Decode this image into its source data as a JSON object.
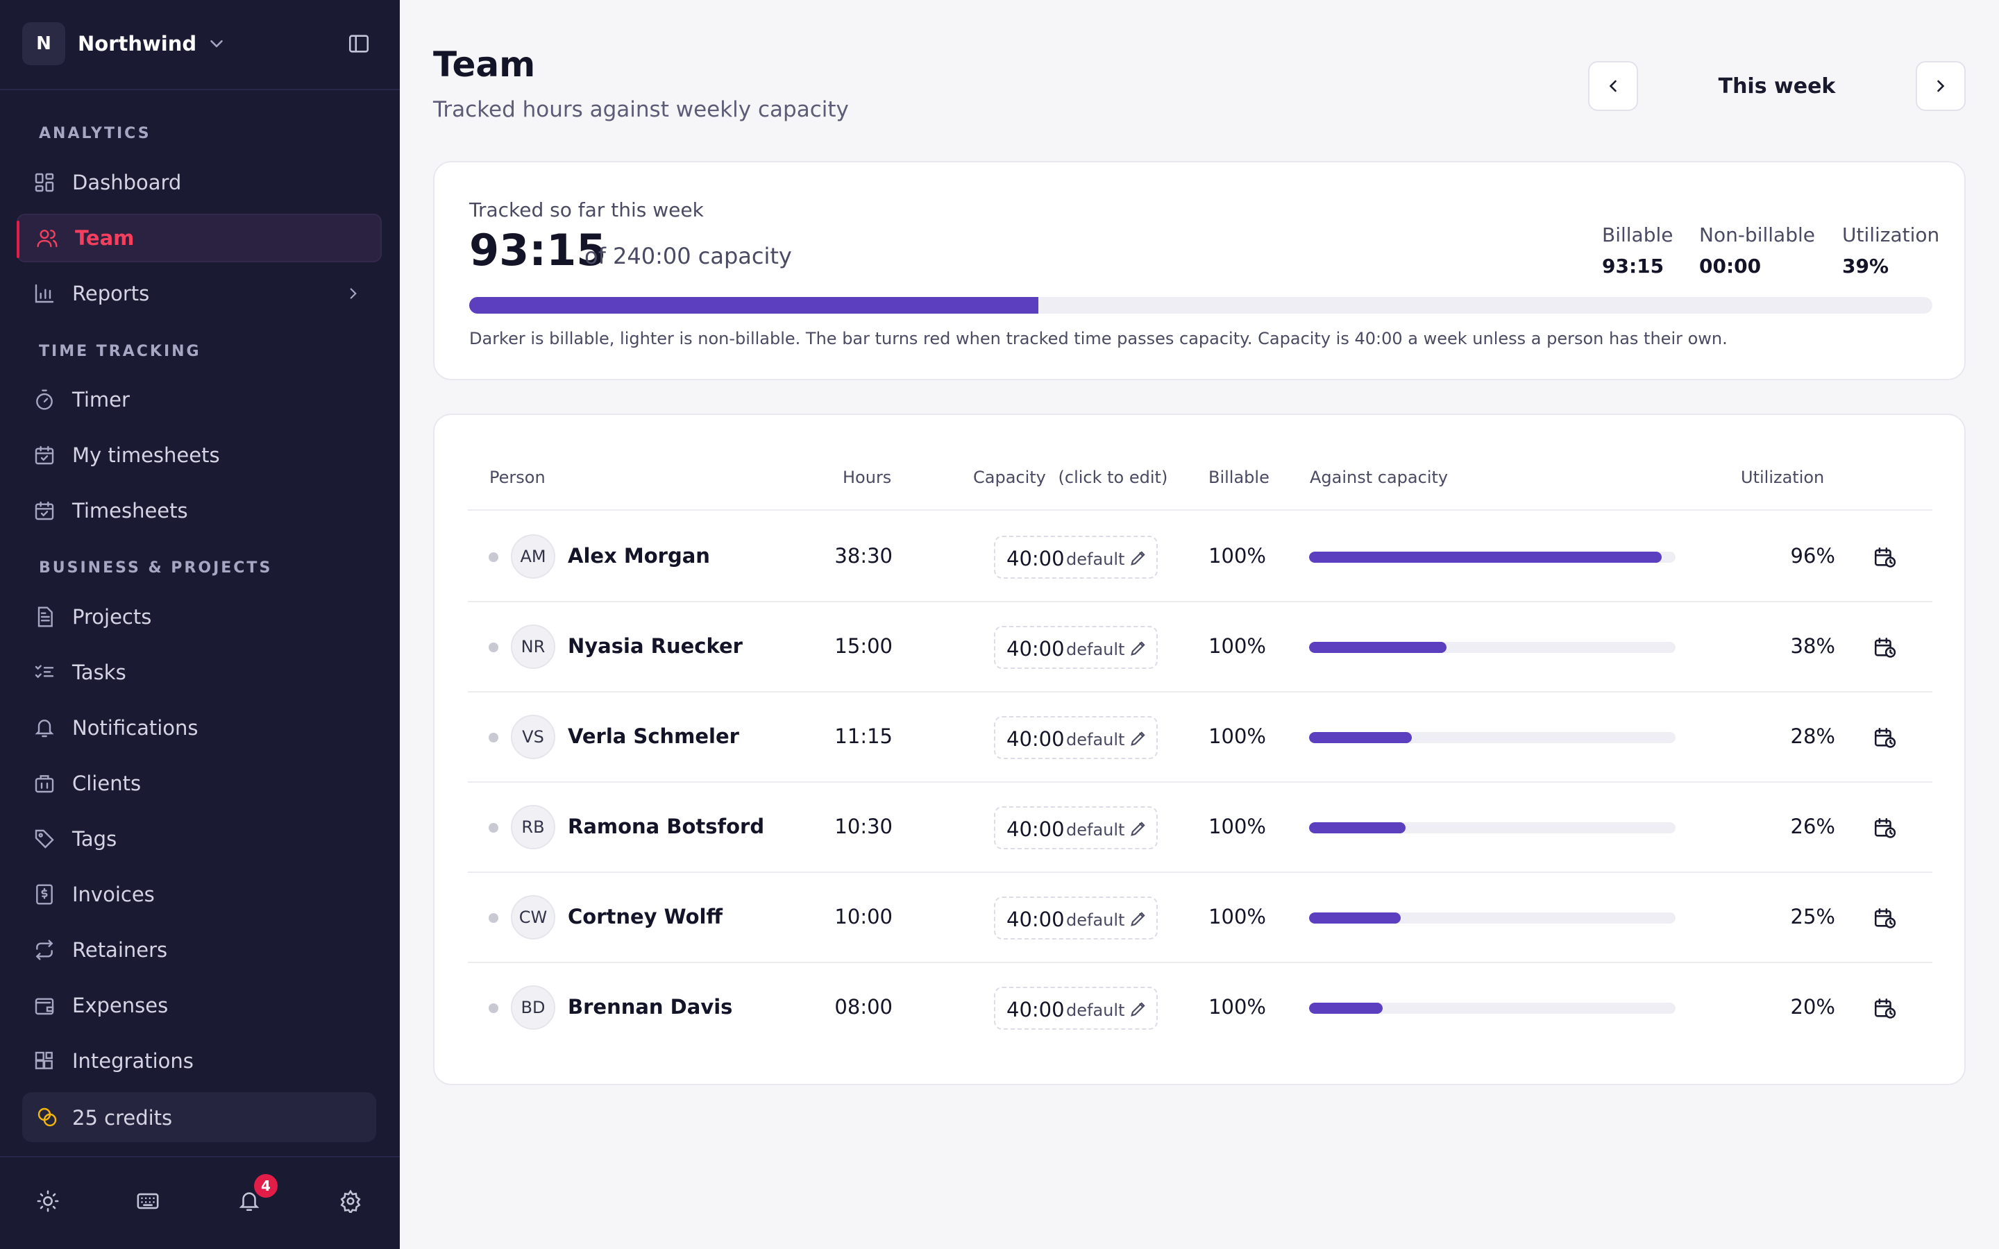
{
  "sidebar": {
    "workspace_initial": "N",
    "workspace_name": "Northwind",
    "sections": {
      "analytics": "ANALYTICS",
      "time_tracking": "TIME TRACKING",
      "business": "BUSINESS & PROJECTS"
    },
    "items": {
      "dashboard": "Dashboard",
      "team": "Team",
      "reports": "Reports",
      "timer": "Timer",
      "my_timesheets": "My timesheets",
      "timesheets": "Timesheets",
      "projects": "Projects",
      "tasks": "Tasks",
      "notifications": "Notifications",
      "clients": "Clients",
      "tags": "Tags",
      "invoices": "Invoices",
      "retainers": "Retainers",
      "expenses": "Expenses",
      "integrations": "Integrations"
    },
    "credits": "25 credits",
    "notification_count": "4",
    "accent_color": "#e11d48"
  },
  "header": {
    "title": "Team",
    "subtitle": "Tracked hours against weekly capacity",
    "week_label": "This week"
  },
  "summary": {
    "label": "Tracked so far this week",
    "tracked": "93:15",
    "capacity_text": "of 240:00 capacity",
    "progress_fraction": 0.389,
    "billable_label": "Billable",
    "billable_value": "93:15",
    "nonbillable_label": "Non-billable",
    "nonbillable_value": "00:00",
    "utilization_label": "Utilization",
    "utilization_value": "39%",
    "note": "Darker is billable, lighter is non-billable. The bar turns red when tracked time passes capacity. Capacity is 40:00 a week unless a person has their own.",
    "bar_color": "#5b3fbf"
  },
  "table": {
    "headers": {
      "person": "Person",
      "hours": "Hours",
      "capacity": "Capacity",
      "capacity_hint": "(click to edit)",
      "billable": "Billable",
      "against": "Against capacity",
      "utilization": "Utilization"
    },
    "rows": [
      {
        "initials": "AM",
        "name": "Alex Morgan",
        "hours": "38:30",
        "capacity": "40:00",
        "capacity_note": "default",
        "billable": "100%",
        "fraction": 0.9625,
        "utilization": "96%"
      },
      {
        "initials": "NR",
        "name": "Nyasia Ruecker",
        "hours": "15:00",
        "capacity": "40:00",
        "capacity_note": "default",
        "billable": "100%",
        "fraction": 0.375,
        "utilization": "38%"
      },
      {
        "initials": "VS",
        "name": "Verla Schmeler",
        "hours": "11:15",
        "capacity": "40:00",
        "capacity_note": "default",
        "billable": "100%",
        "fraction": 0.281,
        "utilization": "28%"
      },
      {
        "initials": "RB",
        "name": "Ramona Botsford",
        "hours": "10:30",
        "capacity": "40:00",
        "capacity_note": "default",
        "billable": "100%",
        "fraction": 0.2625,
        "utilization": "26%"
      },
      {
        "initials": "CW",
        "name": "Cortney Wolff",
        "hours": "10:00",
        "capacity": "40:00",
        "capacity_note": "default",
        "billable": "100%",
        "fraction": 0.25,
        "utilization": "25%"
      },
      {
        "initials": "BD",
        "name": "Brennan Davis",
        "hours": "08:00",
        "capacity": "40:00",
        "capacity_note": "default",
        "billable": "100%",
        "fraction": 0.2,
        "utilization": "20%"
      }
    ]
  }
}
